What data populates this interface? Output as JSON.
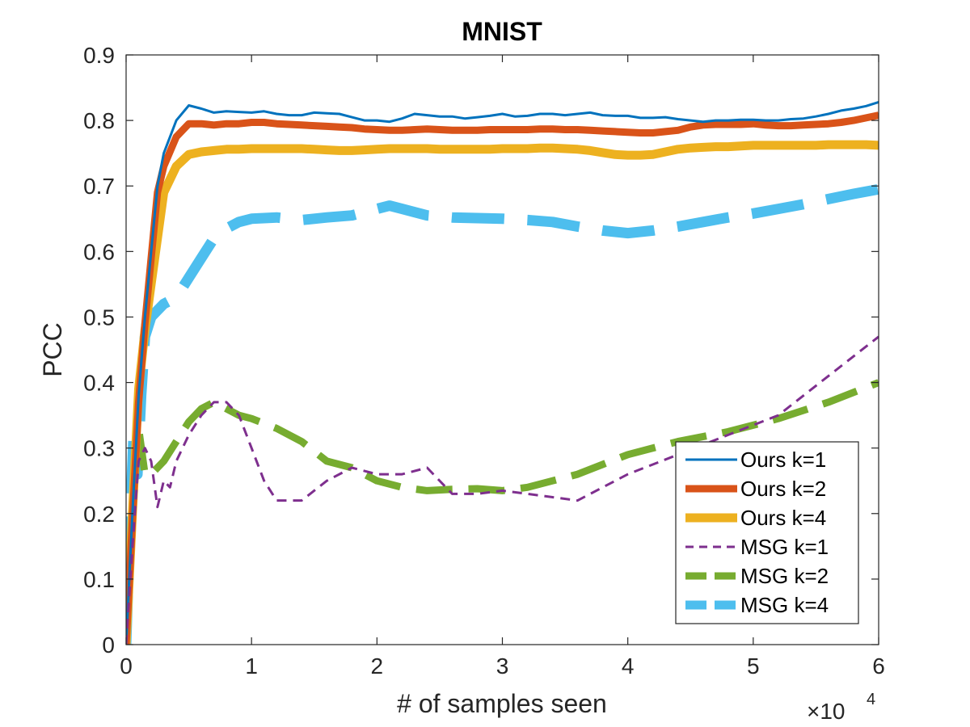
{
  "chart_data": {
    "type": "line",
    "title": "MNIST",
    "xlabel": "# of samples seen",
    "ylabel": "PCC",
    "x_exponent_base": "×10",
    "x_exponent_power": "4",
    "xlim": [
      0,
      6
    ],
    "ylim": [
      0,
      0.9
    ],
    "x_ticks": [
      0,
      1,
      2,
      3,
      4,
      5,
      6
    ],
    "x_tick_labels": [
      "0",
      "1",
      "2",
      "3",
      "4",
      "5",
      "6"
    ],
    "y_ticks": [
      0,
      0.1,
      0.2,
      0.3,
      0.4,
      0.5,
      0.6,
      0.7,
      0.8,
      0.9
    ],
    "y_tick_labels": [
      "0",
      "0.1",
      "0.2",
      "0.3",
      "0.4",
      "0.5",
      "0.6",
      "0.7",
      "0.8",
      "0.9"
    ],
    "grid": false,
    "legend_position": "bottom-right",
    "series": [
      {
        "name": "Ours k=1",
        "color": "#0072BD",
        "style": "solid",
        "width": 3,
        "x": [
          0,
          0.05,
          0.1,
          0.15,
          0.2,
          0.25,
          0.3,
          0.4,
          0.5,
          0.6,
          0.7,
          0.8,
          0.9,
          1.0,
          1.1,
          1.2,
          1.3,
          1.4,
          1.5,
          1.6,
          1.7,
          1.8,
          1.9,
          2.0,
          2.1,
          2.2,
          2.3,
          2.4,
          2.5,
          2.6,
          2.7,
          2.8,
          2.9,
          3.0,
          3.1,
          3.2,
          3.3,
          3.4,
          3.5,
          3.6,
          3.7,
          3.8,
          3.9,
          4.0,
          4.1,
          4.2,
          4.3,
          4.4,
          4.5,
          4.6,
          4.7,
          4.8,
          4.9,
          5.0,
          5.1,
          5.2,
          5.3,
          5.4,
          5.5,
          5.6,
          5.7,
          5.8,
          5.9,
          6.0
        ],
        "y": [
          0.0,
          0.2,
          0.38,
          0.5,
          0.6,
          0.7,
          0.75,
          0.8,
          0.823,
          0.818,
          0.812,
          0.814,
          0.813,
          0.812,
          0.814,
          0.81,
          0.808,
          0.808,
          0.812,
          0.811,
          0.81,
          0.805,
          0.8,
          0.8,
          0.798,
          0.803,
          0.81,
          0.808,
          0.806,
          0.806,
          0.803,
          0.805,
          0.807,
          0.81,
          0.806,
          0.807,
          0.81,
          0.81,
          0.808,
          0.81,
          0.812,
          0.808,
          0.807,
          0.807,
          0.804,
          0.804,
          0.805,
          0.802,
          0.8,
          0.798,
          0.8,
          0.8,
          0.801,
          0.801,
          0.8,
          0.8,
          0.802,
          0.803,
          0.806,
          0.81,
          0.815,
          0.818,
          0.822,
          0.828
        ]
      },
      {
        "name": "Ours k=2",
        "color": "#D95319",
        "style": "solid",
        "width": 9,
        "x": [
          0,
          0.05,
          0.1,
          0.15,
          0.2,
          0.25,
          0.3,
          0.4,
          0.5,
          0.6,
          0.7,
          0.8,
          0.9,
          1.0,
          1.1,
          1.2,
          1.3,
          1.4,
          1.5,
          1.6,
          1.7,
          1.8,
          1.9,
          2.0,
          2.1,
          2.2,
          2.3,
          2.4,
          2.5,
          2.6,
          2.7,
          2.8,
          2.9,
          3.0,
          3.1,
          3.2,
          3.3,
          3.4,
          3.5,
          3.6,
          3.7,
          3.8,
          3.9,
          4.0,
          4.1,
          4.2,
          4.3,
          4.4,
          4.5,
          4.6,
          4.7,
          4.8,
          4.9,
          5.0,
          5.1,
          5.2,
          5.3,
          5.4,
          5.5,
          5.6,
          5.7,
          5.8,
          5.9,
          6.0
        ],
        "y": [
          0.0,
          0.19,
          0.37,
          0.49,
          0.59,
          0.69,
          0.73,
          0.775,
          0.795,
          0.795,
          0.793,
          0.795,
          0.795,
          0.797,
          0.797,
          0.795,
          0.794,
          0.793,
          0.792,
          0.791,
          0.79,
          0.789,
          0.787,
          0.786,
          0.785,
          0.785,
          0.786,
          0.787,
          0.786,
          0.785,
          0.785,
          0.785,
          0.786,
          0.786,
          0.786,
          0.786,
          0.787,
          0.787,
          0.786,
          0.786,
          0.785,
          0.784,
          0.783,
          0.782,
          0.781,
          0.781,
          0.783,
          0.785,
          0.79,
          0.793,
          0.794,
          0.794,
          0.794,
          0.795,
          0.793,
          0.792,
          0.792,
          0.793,
          0.794,
          0.795,
          0.797,
          0.8,
          0.804,
          0.808
        ]
      },
      {
        "name": "Ours k=4",
        "color": "#EDB120",
        "style": "solid",
        "width": 11,
        "x": [
          0,
          0.05,
          0.1,
          0.15,
          0.2,
          0.25,
          0.3,
          0.4,
          0.5,
          0.6,
          0.7,
          0.8,
          0.9,
          1.0,
          1.1,
          1.2,
          1.3,
          1.4,
          1.5,
          1.6,
          1.7,
          1.8,
          1.9,
          2.0,
          2.1,
          2.2,
          2.3,
          2.4,
          2.5,
          2.6,
          2.7,
          2.8,
          2.9,
          3.0,
          3.1,
          3.2,
          3.3,
          3.4,
          3.5,
          3.6,
          3.7,
          3.8,
          3.9,
          4.0,
          4.1,
          4.2,
          4.3,
          4.4,
          4.5,
          4.6,
          4.7,
          4.8,
          4.9,
          5.0,
          5.1,
          5.2,
          5.3,
          5.4,
          5.5,
          5.6,
          5.7,
          5.8,
          5.9,
          6.0
        ],
        "y": [
          0.0,
          0.2,
          0.39,
          0.48,
          0.55,
          0.62,
          0.69,
          0.73,
          0.748,
          0.752,
          0.754,
          0.756,
          0.756,
          0.757,
          0.757,
          0.757,
          0.757,
          0.757,
          0.756,
          0.755,
          0.754,
          0.754,
          0.755,
          0.756,
          0.757,
          0.757,
          0.757,
          0.757,
          0.756,
          0.756,
          0.756,
          0.756,
          0.756,
          0.757,
          0.757,
          0.757,
          0.758,
          0.758,
          0.757,
          0.756,
          0.754,
          0.751,
          0.748,
          0.747,
          0.747,
          0.748,
          0.752,
          0.756,
          0.758,
          0.759,
          0.76,
          0.76,
          0.761,
          0.762,
          0.762,
          0.762,
          0.762,
          0.762,
          0.762,
          0.763,
          0.763,
          0.763,
          0.763,
          0.762
        ]
      },
      {
        "name": "MSG k=1",
        "color": "#7E2F8E",
        "style": "dashed-thin",
        "width": 3,
        "x": [
          0,
          0.05,
          0.1,
          0.15,
          0.2,
          0.25,
          0.3,
          0.35,
          0.4,
          0.5,
          0.6,
          0.7,
          0.8,
          0.9,
          1.0,
          1.1,
          1.2,
          1.4,
          1.6,
          1.8,
          2.0,
          2.2,
          2.4,
          2.6,
          2.8,
          3.0,
          3.2,
          3.4,
          3.6,
          3.8,
          4.0,
          4.4,
          4.8,
          5.2,
          5.6,
          6.0
        ],
        "y": [
          0.0,
          0.15,
          0.28,
          0.3,
          0.28,
          0.21,
          0.25,
          0.24,
          0.28,
          0.32,
          0.35,
          0.37,
          0.37,
          0.35,
          0.3,
          0.25,
          0.22,
          0.22,
          0.25,
          0.27,
          0.26,
          0.26,
          0.27,
          0.23,
          0.23,
          0.235,
          0.23,
          0.225,
          0.22,
          0.24,
          0.26,
          0.29,
          0.32,
          0.35,
          0.41,
          0.47
        ]
      },
      {
        "name": "MSG k=2",
        "color": "#77AC30",
        "style": "dashed",
        "width": 9,
        "x": [
          0,
          0.05,
          0.1,
          0.15,
          0.2,
          0.25,
          0.3,
          0.4,
          0.5,
          0.6,
          0.7,
          0.8,
          0.9,
          1.0,
          1.2,
          1.4,
          1.6,
          1.8,
          2.0,
          2.2,
          2.4,
          2.6,
          2.8,
          3.0,
          3.2,
          3.4,
          3.6,
          3.8,
          4.0,
          4.4,
          4.8,
          5.2,
          5.6,
          6.0
        ],
        "y": [
          0.02,
          0.2,
          0.33,
          0.26,
          0.26,
          0.27,
          0.28,
          0.31,
          0.34,
          0.36,
          0.37,
          0.36,
          0.35,
          0.345,
          0.33,
          0.31,
          0.28,
          0.27,
          0.25,
          0.24,
          0.235,
          0.237,
          0.238,
          0.235,
          0.24,
          0.25,
          0.26,
          0.275,
          0.29,
          0.31,
          0.325,
          0.345,
          0.37,
          0.4
        ]
      },
      {
        "name": "MSG k=4",
        "color": "#4DBEEE",
        "style": "dashed",
        "width": 13,
        "x": [
          0,
          0.03,
          0.06,
          0.09,
          0.12,
          0.15,
          0.2,
          0.25,
          0.3,
          0.4,
          0.5,
          0.6,
          0.7,
          0.8,
          0.9,
          1.0,
          1.2,
          1.4,
          1.6,
          1.8,
          2.0,
          2.1,
          2.2,
          2.4,
          2.6,
          2.8,
          3.0,
          3.2,
          3.4,
          3.6,
          3.8,
          4.0,
          4.2,
          4.4,
          4.6,
          4.8,
          5.0,
          5.2,
          5.4,
          5.6,
          5.8,
          6.0
        ],
        "y": [
          0.0,
          0.18,
          0.32,
          0.26,
          0.38,
          0.47,
          0.5,
          0.51,
          0.52,
          0.53,
          0.56,
          0.59,
          0.62,
          0.635,
          0.645,
          0.65,
          0.652,
          0.648,
          0.652,
          0.655,
          0.665,
          0.67,
          0.665,
          0.655,
          0.652,
          0.651,
          0.65,
          0.648,
          0.645,
          0.638,
          0.632,
          0.628,
          0.632,
          0.638,
          0.645,
          0.652,
          0.658,
          0.665,
          0.672,
          0.68,
          0.688,
          0.695
        ]
      }
    ]
  }
}
